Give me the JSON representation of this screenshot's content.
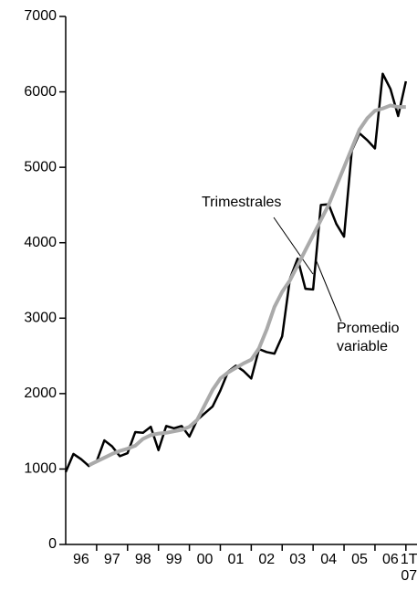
{
  "chart_data": {
    "type": "line",
    "x": [
      1996,
      1996.25,
      1996.5,
      1996.75,
      1997,
      1997.25,
      1997.5,
      1997.75,
      1998,
      1998.25,
      1998.5,
      1998.75,
      1999,
      1999.25,
      1999.5,
      1999.75,
      2000,
      2000.25,
      2000.5,
      2000.75,
      2001,
      2001.25,
      2001.5,
      2001.75,
      2002,
      2002.25,
      2002.5,
      2002.75,
      2003,
      2003.25,
      2003.5,
      2003.75,
      2004,
      2004.25,
      2004.5,
      2004.75,
      2005,
      2005.25,
      2005.5,
      2005.75,
      2006,
      2006.25,
      2006.5,
      2006.75,
      2007
    ],
    "series": [
      {
        "name": "Trimestrales",
        "color": "#000000",
        "values": [
          960,
          1200,
          1130,
          1040,
          1100,
          1380,
          1300,
          1170,
          1210,
          1490,
          1480,
          1560,
          1250,
          1570,
          1540,
          1570,
          1430,
          1650,
          1740,
          1830,
          2040,
          2290,
          2370,
          2300,
          2200,
          2590,
          2550,
          2530,
          2760,
          3520,
          3790,
          3390,
          3380,
          4500,
          4510,
          4250,
          4080,
          5220,
          5450,
          5360,
          5250,
          6240,
          6040,
          5680,
          6140
        ]
      },
      {
        "name": "Promedio variable",
        "color": "#aaaaaa",
        "values": [
          null,
          null,
          null,
          1050,
          1100,
          1150,
          1200,
          1240,
          1270,
          1310,
          1400,
          1450,
          1470,
          1480,
          1500,
          1520,
          1560,
          1650,
          1850,
          2050,
          2200,
          2280,
          2340,
          2400,
          2450,
          2600,
          2850,
          3150,
          3350,
          3500,
          3700,
          3900,
          4100,
          4300,
          4500,
          4750,
          5000,
          5250,
          5500,
          5650,
          5750,
          5780,
          5820,
          5800,
          5800
        ]
      }
    ],
    "xlim": [
      1996,
      2007.3
    ],
    "xticks": [
      {
        "value": 1996.5,
        "label": "96"
      },
      {
        "value": 1997.5,
        "label": "97"
      },
      {
        "value": 1998.5,
        "label": "98"
      },
      {
        "value": 1999.5,
        "label": "99"
      },
      {
        "value": 2000.5,
        "label": "00"
      },
      {
        "value": 2001.5,
        "label": "01"
      },
      {
        "value": 2002.5,
        "label": "02"
      },
      {
        "value": 2003.5,
        "label": "03"
      },
      {
        "value": 2004.5,
        "label": "04"
      },
      {
        "value": 2005.5,
        "label": "05"
      },
      {
        "value": 2006.5,
        "label": "06"
      },
      {
        "value": 2007.1,
        "label": "1T 07"
      }
    ],
    "x_tick_marks": [
      1997,
      1998,
      1999,
      2000,
      2001,
      2002,
      2003,
      2004,
      2005,
      2006,
      2007
    ],
    "ylim": [
      0,
      7000
    ],
    "yticks": [
      0,
      1000,
      2000,
      3000,
      4000,
      5000,
      6000,
      7000
    ],
    "annotations": [
      "Trimestrales",
      "Promedio variable"
    ]
  }
}
